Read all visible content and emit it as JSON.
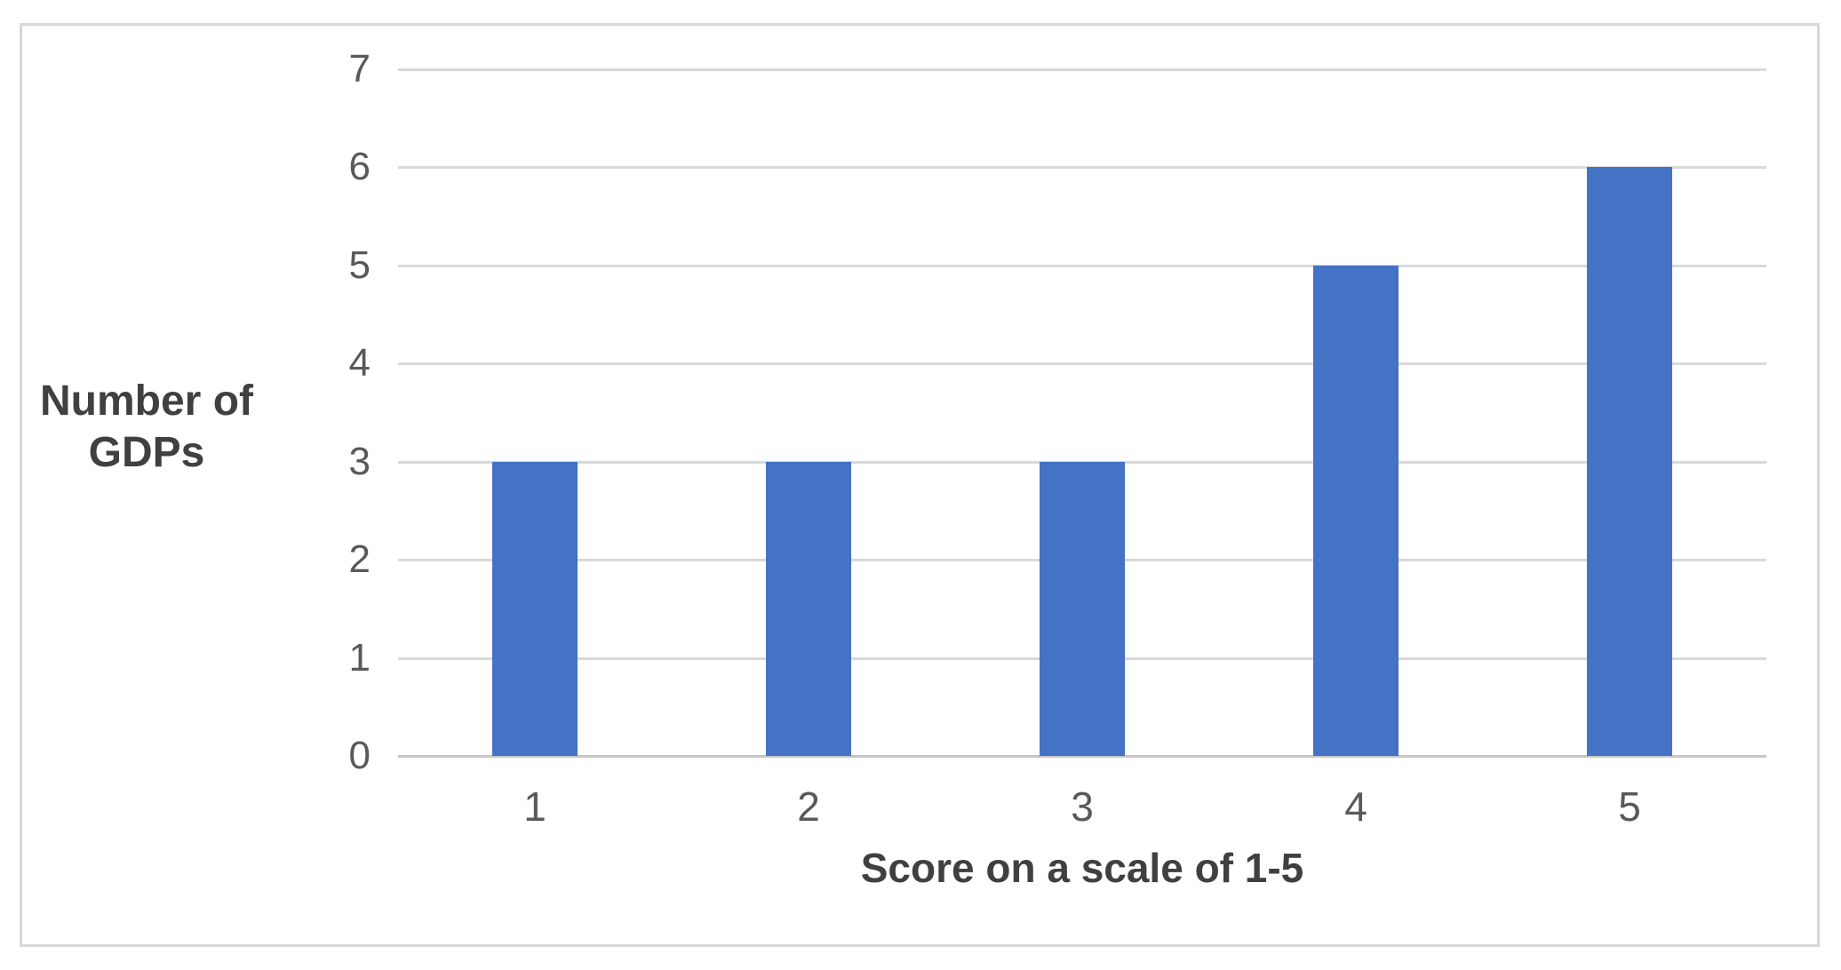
{
  "chart_data": {
    "type": "bar",
    "title": "",
    "categories": [
      "1",
      "2",
      "3",
      "4",
      "5"
    ],
    "values": [
      3,
      3,
      3,
      5,
      6
    ],
    "xlabel": "Score on a scale of 1-5",
    "ylabel": "Number of GDPs",
    "ylim": [
      0,
      7
    ],
    "yticks": [
      0,
      1,
      2,
      3,
      4,
      5,
      6,
      7
    ],
    "grid": true,
    "legend_position": "none",
    "bar_color": "#4472C4",
    "gridline_color": "#d9d9d9",
    "axis_line_color": "#c6c6c6",
    "tick_label_color": "#595959",
    "axis_title_color": "#404040",
    "frame_border_color": "#d8d8d8",
    "background": "#ffffff"
  }
}
